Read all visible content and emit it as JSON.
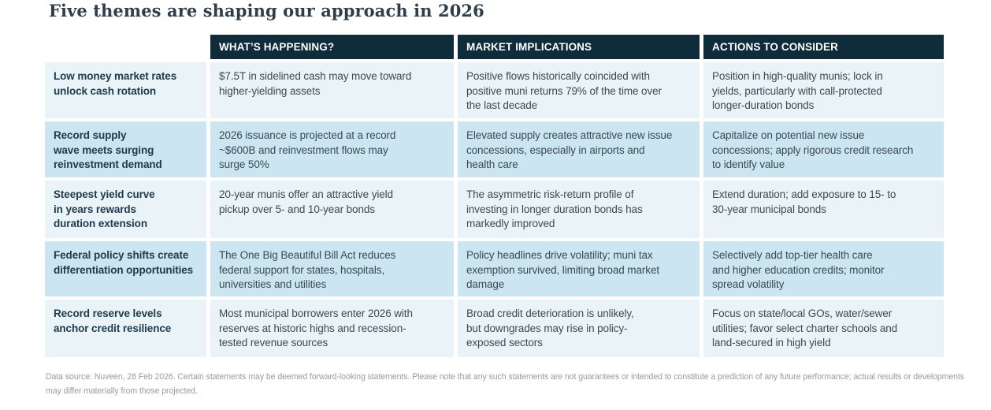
{
  "title": "Five themes are shaping our approach in 2026",
  "table": {
    "headers": {
      "happening": "WHAT’S HAPPENING?",
      "implications": "MARKET IMPLICATIONS",
      "actions": "ACTIONS TO CONSIDER"
    },
    "rows": [
      {
        "theme": "Low money market rates\nunlock cash rotation",
        "happening": "$7.5T in sidelined cash may move toward\nhigher-yielding assets",
        "implications": "Positive flows historically coincided with\npositive muni returns 79% of the time over\nthe last decade",
        "actions": "Position in high-quality munis; lock in\nyields, particularly with call-protected\nlonger-duration bonds"
      },
      {
        "theme": "Record supply\nwave meets surging\nreinvestment demand",
        "happening": "2026 issuance is projected at a record\n~$600B and reinvestment flows may\nsurge 50%",
        "implications": "Elevated supply creates attractive new issue\nconcessions, especially in airports and\nhealth care",
        "actions": "Capitalize on potential new issue\nconcessions; apply rigorous credit research\nto identify value"
      },
      {
        "theme": "Steepest yield curve\nin years rewards\nduration extension",
        "happening": "20-year munis offer an attractive yield\npickup over 5- and 10-year bonds",
        "implications": "The asymmetric risk-return profile of\ninvesting in longer duration bonds has\nmarkedly improved",
        "actions": "Extend duration; add exposure to 15- to\n30-year municipal bonds"
      },
      {
        "theme": "Federal policy shifts create\ndifferentiation opportunities",
        "happening": "The One Big Beautiful Bill Act reduces\nfederal support for states, hospitals,\nuniversities and utilities",
        "implications": "Policy headlines drive volatility; muni tax\nexemption survived, limiting broad market\ndamage",
        "actions": "Selectively add top-tier health care\nand higher education credits; monitor\nspread volatility"
      },
      {
        "theme": "Record reserve levels\nanchor credit resilience",
        "happening": "Most municipal borrowers enter 2026 with\nreserves at historic highs and recession-\ntested revenue sources",
        "implications": "Broad credit deterioration is unlikely,\nbut downgrades may rise in policy-\nexposed sectors",
        "actions": "Focus on state/local GOs, water/sewer\nutilities; favor select charter schools and\nland-secured in high yield"
      }
    ]
  },
  "footnote": "Data source: Nuveen, 28 Feb 2026. Certain statements may be deemed forward-looking statements. Please note that any such statements are not guarantees or intended to constitute a prediction of any future performance; actual results or developments may differ materially from those projected.",
  "colors": {
    "header_bg": "#0e2c39",
    "row_light_bg": "#eaf3f8",
    "row_blue_bg": "#cbe5f1",
    "theme_text": "#203c4c",
    "body_text": "#3c4a52",
    "title_text": "#2e3e4c",
    "footnote_text": "#9b9b9b"
  }
}
